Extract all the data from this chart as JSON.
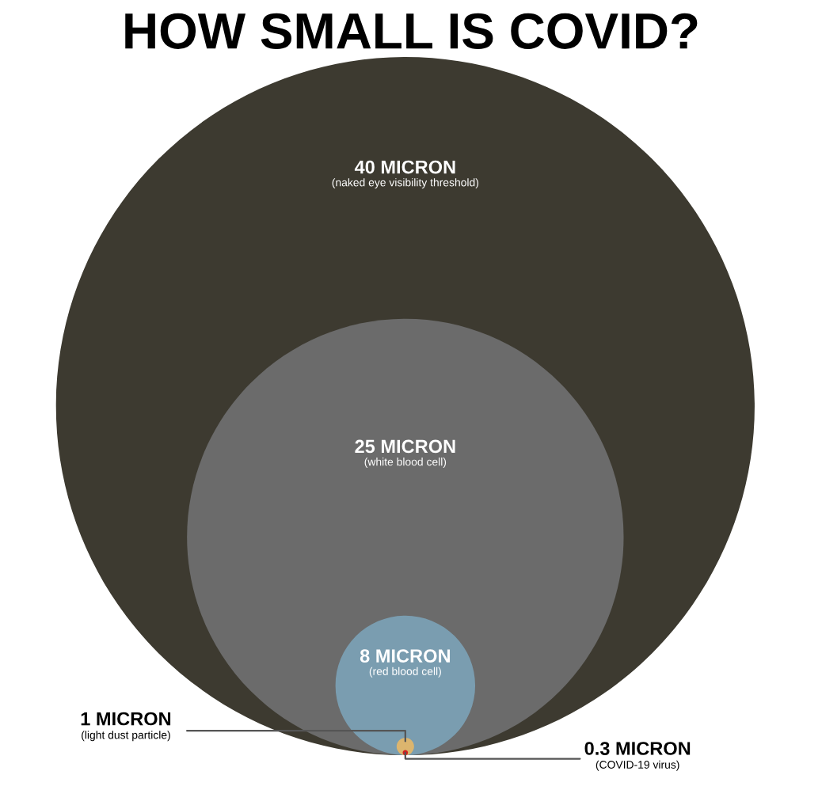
{
  "chart_data": {
    "type": "other",
    "title": "HOW SMALL IS COVID?",
    "categories": [
      "(naked eye visibility threshold)",
      "(white blood cell)",
      "(red blood cell)",
      "(light dust particle)",
      "(COVID-19 virus)"
    ],
    "values": [
      40,
      25,
      8,
      1,
      0.3
    ],
    "value_labels": [
      "40 MICRON",
      "25 MICRON",
      "8 MICRON",
      "1 MICRON",
      "0.3 MICRON"
    ],
    "colors": [
      "#3d3a30",
      "#6b6b6b",
      "#7a9db0",
      "#dcb56e",
      "#d01f1f"
    ]
  }
}
